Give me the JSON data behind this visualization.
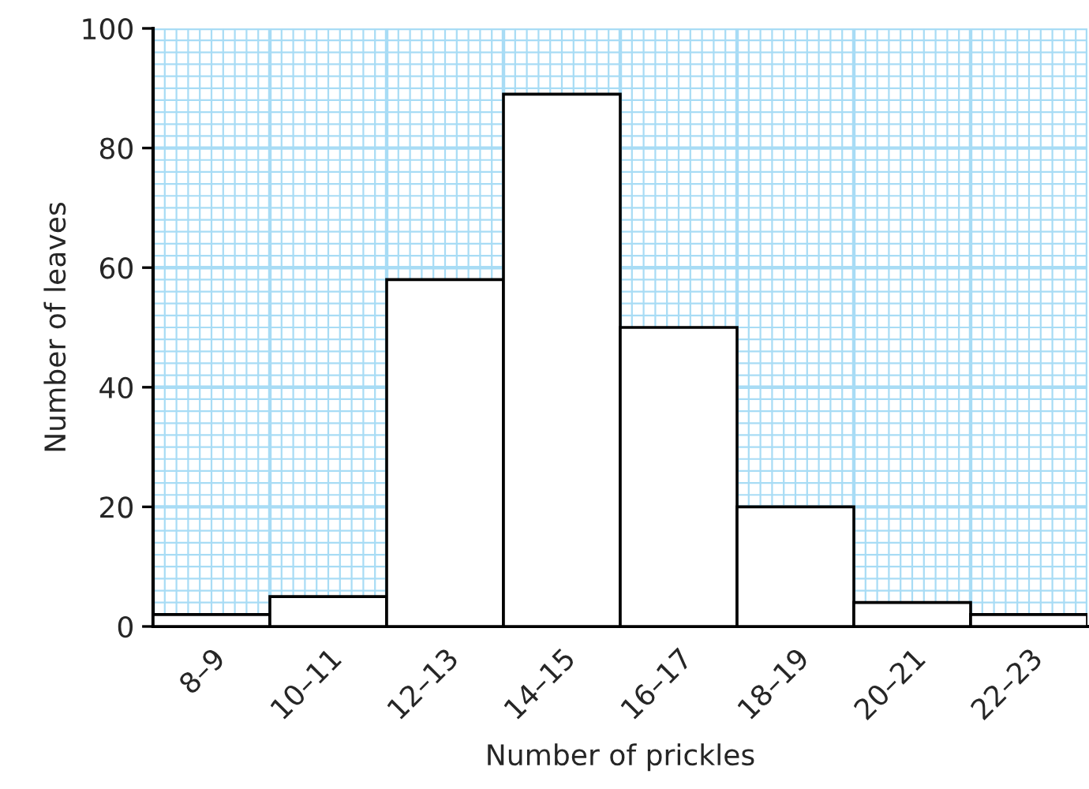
{
  "chart_data": {
    "type": "bar",
    "xlabel": "Number of prickles",
    "ylabel": "Number of leaves",
    "categories": [
      "8–9",
      "10–11",
      "12–13",
      "14–15",
      "16–17",
      "18–19",
      "20–21",
      "22–23"
    ],
    "values": [
      2,
      5,
      58,
      89,
      50,
      20,
      4,
      2
    ],
    "color": "#ffffff",
    "ylim": [
      0,
      100
    ],
    "yticks": [
      0,
      20,
      40,
      60,
      80,
      100
    ],
    "grid": true
  }
}
